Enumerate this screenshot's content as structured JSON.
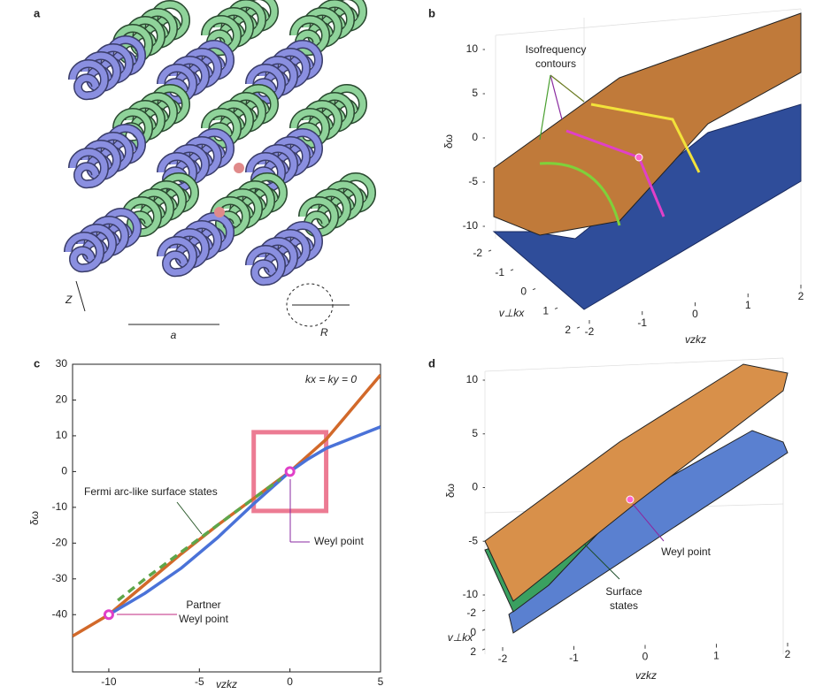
{
  "panel_labels": [
    "a",
    "b",
    "c",
    "d"
  ],
  "illustration": {
    "labels": [
      "Z",
      "a",
      "R"
    ]
  },
  "chart_data": [
    {
      "type": "surface3d",
      "zlabel": "δω",
      "xlabel": "v⊥kx",
      "ylabel": "vzkz",
      "zticks": [
        -10,
        -5,
        0,
        5,
        10
      ],
      "xticks": [
        -2,
        -1,
        0,
        1,
        2
      ],
      "yticks": [
        -2,
        -1,
        0,
        1,
        2
      ],
      "contour_label": [
        "Isofrequency",
        "contours"
      ]
    },
    {
      "type": "line",
      "xlabel": "vzkz",
      "ylabel": "δω",
      "condition": "kx = ky = 0",
      "xlim": [
        -12,
        5
      ],
      "ylim": [
        -56,
        30
      ],
      "xticks": [
        -10,
        -5,
        0,
        5
      ],
      "yticks": [
        -40,
        -30,
        -20,
        -10,
        0,
        10,
        20,
        30
      ],
      "series": [
        {
          "color": "#d2692a",
          "x": [
            -12,
            -10,
            -8,
            -6,
            -4,
            -2,
            0,
            1,
            2,
            3,
            4,
            5
          ],
          "values": [
            -46,
            -40,
            -31.5,
            -23,
            -15,
            -7.5,
            0,
            4.5,
            9,
            15,
            21,
            27
          ]
        },
        {
          "color": "#4a72d8",
          "x": [
            -10,
            -8,
            -6,
            -4,
            -2,
            0,
            1,
            2,
            3,
            4,
            5
          ],
          "values": [
            -40,
            -34,
            -27,
            -18.5,
            -9,
            0,
            3.5,
            6.5,
            8.5,
            10.5,
            12.5
          ]
        },
        {
          "color": "#5ea64a",
          "dashed": true,
          "x": [
            -9.5,
            -8,
            -6,
            -4,
            -2,
            -0.5
          ],
          "values": [
            -36,
            -30,
            -22.5,
            -15,
            -7.5,
            -2
          ]
        }
      ],
      "points": {
        "color": "#e040c8",
        "x": [
          0,
          -10
        ],
        "values": [
          0,
          -40
        ]
      },
      "highlight_box": {
        "color": "#ec7b93",
        "x": [
          -2,
          2
        ],
        "y": [
          -11,
          11
        ]
      },
      "surface_label": "Fermi arc-like surface states",
      "weyl_label": "Weyl point",
      "partner_label": [
        "Partner",
        "Weyl point"
      ]
    },
    {
      "type": "surface3d",
      "zlabel": "δω",
      "xlabel": "v⊥kx",
      "ylabel": "vzkz",
      "zticks": [
        -10,
        -5,
        0,
        5,
        10
      ],
      "xticks": [
        -2,
        0,
        2
      ],
      "yticks": [
        -2,
        -1,
        0,
        1,
        2
      ],
      "weyl_label": "Weyl point",
      "surface_label": [
        "Surface",
        "states"
      ]
    }
  ]
}
